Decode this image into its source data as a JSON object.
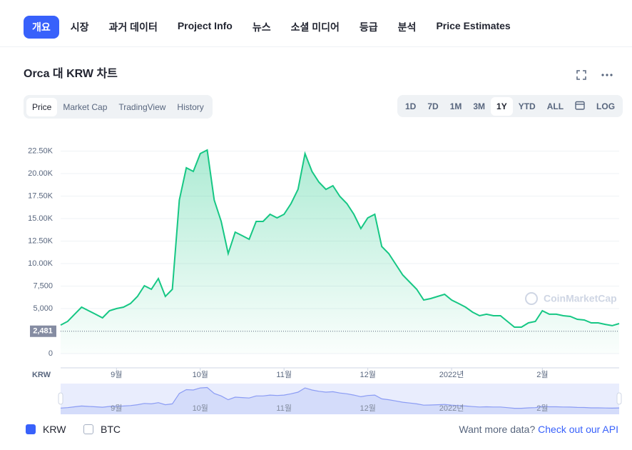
{
  "nav": {
    "tabs": [
      "개요",
      "시장",
      "과거 데이터",
      "Project Info",
      "뉴스",
      "소셜 미디어",
      "등급",
      "분석",
      "Price Estimates"
    ]
  },
  "chart_title": "Orca 대 KRW 차트",
  "chart_tabs": [
    "Price",
    "Market Cap",
    "TradingView",
    "History"
  ],
  "range_buttons": [
    "1D",
    "7D",
    "1M",
    "3M",
    "1Y",
    "YTD",
    "ALL"
  ],
  "log_button": "LOG",
  "watermark": "CoinMarketCap",
  "legend": {
    "items": [
      "KRW",
      "BTC"
    ]
  },
  "footer": {
    "prompt": "Want more data?",
    "link": "Check out our API"
  },
  "chart_data": {
    "type": "line",
    "currency": "KRW",
    "color": "#16c784",
    "categories": [
      null,
      null,
      null,
      null,
      null,
      null,
      null,
      null,
      "9월",
      null,
      null,
      null,
      null,
      null,
      null,
      null,
      null,
      null,
      null,
      null,
      "10월",
      null,
      null,
      null,
      null,
      null,
      null,
      null,
      null,
      null,
      null,
      null,
      "11월",
      null,
      null,
      null,
      null,
      null,
      null,
      null,
      null,
      null,
      null,
      null,
      "12월",
      null,
      null,
      null,
      null,
      null,
      null,
      null,
      null,
      null,
      null,
      null,
      "2022년",
      null,
      null,
      null,
      null,
      null,
      null,
      null,
      null,
      null,
      null,
      null,
      null,
      "2월",
      null,
      null,
      null,
      null,
      null,
      null,
      null,
      null,
      null,
      null,
      null
    ],
    "values": [
      3170,
      3570,
      4370,
      5160,
      4760,
      4370,
      3970,
      4760,
      5000,
      5160,
      5560,
      6350,
      7540,
      7140,
      8330,
      6350,
      7140,
      17060,
      20640,
      20240,
      22220,
      22620,
      17060,
      14680,
      11110,
      13490,
      13100,
      12700,
      14680,
      14680,
      15480,
      15080,
      15480,
      16670,
      18250,
      22220,
      20240,
      19050,
      18250,
      18650,
      17460,
      16670,
      15480,
      13890,
      15080,
      15480,
      11900,
      11110,
      9920,
      8730,
      7940,
      7140,
      5950,
      6110,
      6350,
      6590,
      5950,
      5560,
      5160,
      4600,
      4210,
      4370,
      4210,
      4210,
      3570,
      2940,
      2940,
      3410,
      3570,
      4760,
      4370,
      4370,
      4210,
      4130,
      3810,
      3730,
      3410,
      3410,
      3250,
      3100,
      3330
    ],
    "current_price": {
      "value": 2481,
      "label": "2,481"
    },
    "ylim": [
      0,
      25000
    ],
    "yticks": [
      0,
      {
        "value": 5000,
        "label": "5,000"
      },
      {
        "value": 7500,
        "label": "7,500"
      },
      {
        "value": 10000,
        "label": "10.00K"
      },
      {
        "value": 12500,
        "label": "12.50K"
      },
      {
        "value": 15000,
        "label": "15.00K"
      },
      {
        "value": 17500,
        "label": "17.50K"
      },
      {
        "value": 20000,
        "label": "20.00K"
      },
      {
        "value": 22500,
        "label": "22.50K"
      }
    ],
    "grid": true
  }
}
